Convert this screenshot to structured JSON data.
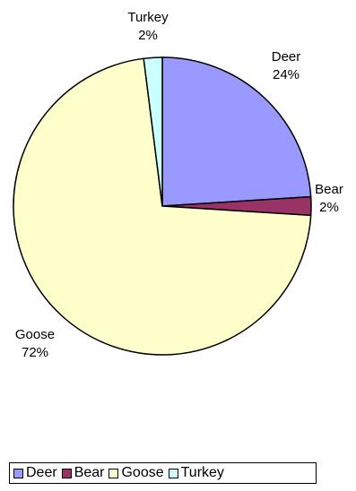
{
  "chart_data": {
    "type": "pie",
    "title": "",
    "categories": [
      "Deer",
      "Bear",
      "Goose",
      "Turkey"
    ],
    "values": [
      24,
      2,
      72,
      2
    ],
    "value_labels": [
      "24%",
      "2%",
      "72%",
      "2%"
    ],
    "colors": [
      "#9999ff",
      "#993366",
      "#ffffcc",
      "#ccffff"
    ],
    "start_angle_deg": 0,
    "direction": "clockwise",
    "legend_position": "bottom",
    "legend": [
      "Deer",
      "Bear",
      "Goose",
      "Turkey"
    ]
  }
}
